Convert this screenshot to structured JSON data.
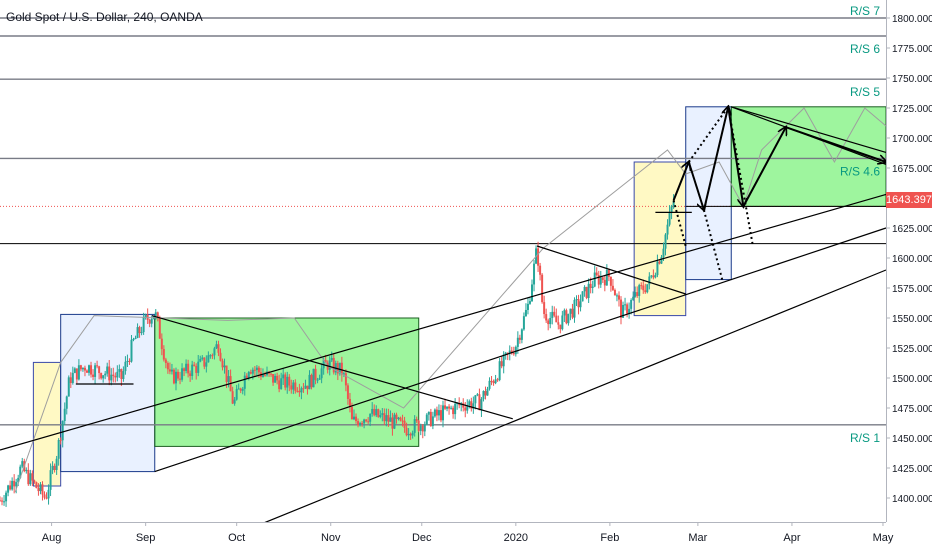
{
  "header": {
    "title": "Gold Spot / U.S. Dollar, 240, OANDA"
  },
  "current_price": {
    "value": 1643.397,
    "label": "1643.397",
    "color": "#ef5350"
  },
  "colors": {
    "up": "#26a69a",
    "down": "#ef5350",
    "green_zone": "#00e600",
    "blue_zone": "#cfe0ff",
    "yellow_zone": "#fff59d",
    "level_line": "#787b86",
    "level_label": "#089981"
  },
  "chart_data": {
    "type": "candlestick",
    "symbol": "Gold Spot / U.S. Dollar",
    "interval": "240",
    "source": "OANDA",
    "y_axis": {
      "range": [
        1380,
        1815
      ],
      "ticks": [
        1400,
        1425,
        1450,
        1475,
        1500,
        1525,
        1550,
        1575,
        1600,
        1625,
        1650,
        1675,
        1700,
        1725,
        1750,
        1775,
        1800
      ],
      "tick_labels": [
        "1400.000",
        "1425.000",
        "1450.000",
        "1475.000",
        "1500.000",
        "1525.000",
        "1550.000",
        "1575.000",
        "1600.000",
        "1625.000",
        "1650.000",
        "1675.000",
        "1700.000",
        "1725.000",
        "1750.000",
        "1775.000",
        "1800.000"
      ]
    },
    "x_axis": {
      "range": [
        "2019-07-15",
        "2020-05-02"
      ],
      "ticks": [
        {
          "date": "2019-08-01",
          "label": "Aug"
        },
        {
          "date": "2019-09-01",
          "label": "Sep"
        },
        {
          "date": "2019-10-01",
          "label": "Oct"
        },
        {
          "date": "2019-11-01",
          "label": "Nov"
        },
        {
          "date": "2019-12-01",
          "label": "Dec"
        },
        {
          "date": "2020-01-01",
          "label": "2020"
        },
        {
          "date": "2020-02-01",
          "label": "Feb"
        },
        {
          "date": "2020-03-01",
          "label": "Mar"
        },
        {
          "date": "2020-04-01",
          "label": "Apr"
        },
        {
          "date": "2020-05-01",
          "label": "May"
        }
      ]
    },
    "price_path": [
      [
        "2019-07-15",
        1398
      ],
      [
        "2019-07-22",
        1425
      ],
      [
        "2019-07-26",
        1412
      ],
      [
        "2019-07-30",
        1400
      ],
      [
        "2019-08-03",
        1440
      ],
      [
        "2019-08-07",
        1500
      ],
      [
        "2019-08-12",
        1510
      ],
      [
        "2019-08-18",
        1505
      ],
      [
        "2019-08-24",
        1500
      ],
      [
        "2019-08-28",
        1530
      ],
      [
        "2019-09-01",
        1548
      ],
      [
        "2019-09-04",
        1555
      ],
      [
        "2019-09-09",
        1500
      ],
      [
        "2019-09-14",
        1505
      ],
      [
        "2019-09-20",
        1512
      ],
      [
        "2019-09-25",
        1528
      ],
      [
        "2019-09-30",
        1478
      ],
      [
        "2019-10-05",
        1510
      ],
      [
        "2019-10-12",
        1500
      ],
      [
        "2019-10-18",
        1495
      ],
      [
        "2019-10-24",
        1495
      ],
      [
        "2019-10-31",
        1512
      ],
      [
        "2019-11-05",
        1505
      ],
      [
        "2019-11-08",
        1463
      ],
      [
        "2019-11-14",
        1470
      ],
      [
        "2019-11-20",
        1465
      ],
      [
        "2019-11-26",
        1458
      ],
      [
        "2019-12-01",
        1462
      ],
      [
        "2019-12-07",
        1470
      ],
      [
        "2019-12-14",
        1478
      ],
      [
        "2019-12-20",
        1480
      ],
      [
        "2019-12-26",
        1505
      ],
      [
        "2020-01-01",
        1528
      ],
      [
        "2020-01-05",
        1560
      ],
      [
        "2020-01-08",
        1608
      ],
      [
        "2020-01-10",
        1555
      ],
      [
        "2020-01-15",
        1545
      ],
      [
        "2020-01-21",
        1560
      ],
      [
        "2020-01-27",
        1582
      ],
      [
        "2020-02-01",
        1585
      ],
      [
        "2020-02-05",
        1553
      ],
      [
        "2020-02-10",
        1570
      ],
      [
        "2020-02-14",
        1580
      ],
      [
        "2020-02-18",
        1605
      ],
      [
        "2020-02-22",
        1648
      ]
    ],
    "levels": [
      {
        "name": "R/S 1",
        "value": 1461
      },
      {
        "name": "",
        "value": 1612
      },
      {
        "name": "",
        "value": 1643
      },
      {
        "name": "R/S 4.6",
        "value": 1683
      },
      {
        "name": "R/S 5",
        "value": 1749
      },
      {
        "name": "R/S 6",
        "value": 1785
      },
      {
        "name": "R/S 7",
        "value": 1800
      }
    ],
    "zones": [
      {
        "type": "yellow",
        "x": [
          "2019-07-26",
          "2019-08-04"
        ],
        "y": [
          1410,
          1513
        ]
      },
      {
        "type": "blue",
        "x": [
          "2019-08-04",
          "2019-09-04"
        ],
        "y": [
          1422,
          1553
        ]
      },
      {
        "type": "green",
        "x": [
          "2019-09-04",
          "2019-11-30"
        ],
        "y": [
          1443,
          1550
        ]
      },
      {
        "type": "yellow",
        "x": [
          "2020-02-09",
          "2020-02-26"
        ],
        "y": [
          1552,
          1680
        ]
      },
      {
        "type": "blue",
        "x": [
          "2020-02-26",
          "2020-03-12"
        ],
        "y": [
          1582,
          1726
        ]
      },
      {
        "type": "green",
        "x": [
          "2020-03-12",
          "2020-05-02"
        ],
        "y": [
          1643,
          1726
        ]
      }
    ],
    "trend_lines": [
      {
        "from": [
          "2019-07-15",
          1440
        ],
        "to": [
          "2020-05-02",
          1653
        ]
      },
      {
        "from": [
          "2019-09-04",
          1422
        ],
        "to": [
          "2020-05-02",
          1625
        ]
      },
      {
        "from": [
          "2019-10-01",
          1370
        ],
        "to": [
          "2020-05-02",
          1590
        ]
      },
      {
        "from": [
          "2019-09-03",
          1552
        ],
        "to": [
          "2019-12-31",
          1466
        ]
      },
      {
        "from": [
          "2020-01-08",
          1610
        ],
        "to": [
          "2020-02-26",
          1570
        ]
      },
      {
        "from": [
          "2020-03-12",
          1726
        ],
        "to": [
          "2020-05-02",
          1678
        ]
      },
      {
        "from": [
          "2020-03-12",
          1726
        ],
        "to": [
          "2020-05-02",
          1688
        ]
      },
      {
        "from": [
          "2019-08-09",
          1495
        ],
        "to": [
          "2019-08-28",
          1495
        ]
      },
      {
        "from": [
          "2020-02-16",
          1638
        ],
        "to": [
          "2020-02-28",
          1638
        ]
      }
    ],
    "projection_arrows": [
      {
        "from": [
          "2020-02-22",
          1648
        ],
        "to": [
          "2020-02-27",
          1680
        ]
      },
      {
        "from": [
          "2020-02-27",
          1680
        ],
        "to": [
          "2020-03-03",
          1640
        ]
      },
      {
        "from": [
          "2020-03-03",
          1640
        ],
        "to": [
          "2020-03-11",
          1726
        ]
      },
      {
        "from": [
          "2020-03-11",
          1726
        ],
        "to": [
          "2020-03-16",
          1643
        ]
      },
      {
        "from": [
          "2020-03-16",
          1643
        ],
        "to": [
          "2020-03-30",
          1709
        ]
      },
      {
        "from": [
          "2020-03-30",
          1709
        ],
        "to": [
          "2020-05-02",
          1680
        ]
      }
    ],
    "dotted_projections": [
      [
        [
          "2020-02-22",
          1648
        ],
        [
          "2020-02-26",
          1610
        ]
      ],
      [
        [
          "2020-02-27",
          1680
        ],
        [
          "2020-03-11",
          1726
        ],
        [
          "2020-03-19",
          1612
        ]
      ],
      [
        [
          "2020-03-03",
          1640
        ],
        [
          "2020-03-09",
          1582
        ]
      ]
    ],
    "thin_path": [
      [
        "2019-07-20",
        1405
      ],
      [
        "2019-08-04",
        1513
      ],
      [
        "2019-08-15",
        1552
      ],
      [
        "2019-09-28",
        1548
      ],
      [
        "2019-10-20",
        1550
      ],
      [
        "2019-10-31",
        1510
      ],
      [
        "2019-11-25",
        1475
      ],
      [
        "2020-01-10",
        1608
      ],
      [
        "2020-02-20",
        1690
      ],
      [
        "2020-02-26",
        1670
      ],
      [
        "2020-03-08",
        1680
      ],
      [
        "2020-03-16",
        1643
      ],
      [
        "2020-03-22",
        1690
      ],
      [
        "2020-04-05",
        1725
      ],
      [
        "2020-04-15",
        1680
      ],
      [
        "2020-04-25",
        1725
      ],
      [
        "2020-05-02",
        1710
      ]
    ]
  }
}
